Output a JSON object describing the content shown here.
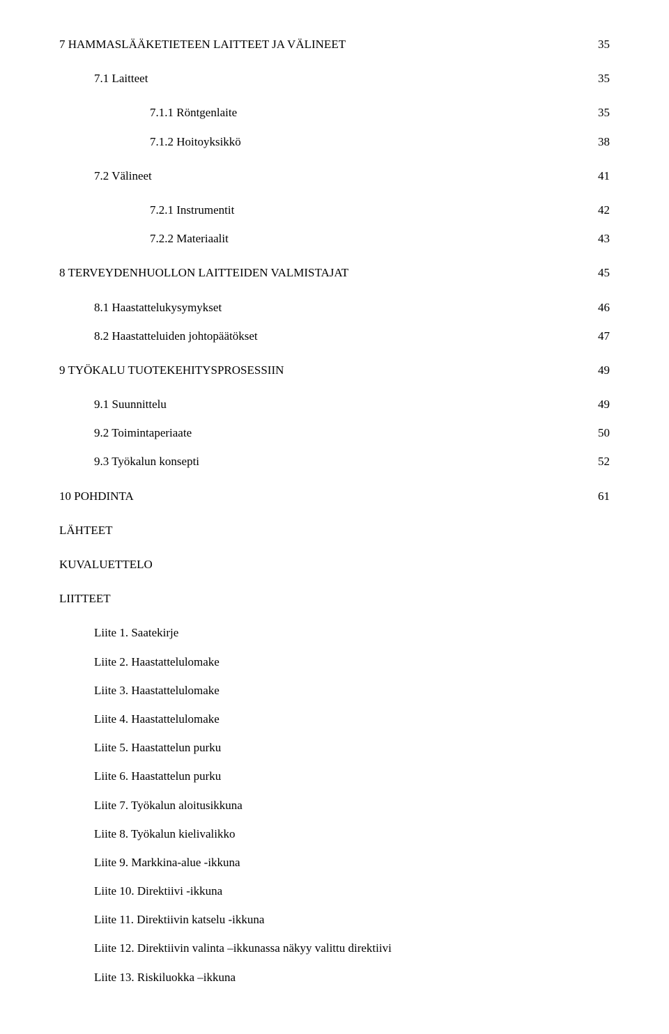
{
  "toc": [
    {
      "label": "7  HAMMASLÄÄKETIETEEN LAITTEET JA VÄLINEET",
      "page": "35",
      "indent": 0,
      "gap": false
    },
    {
      "label": "7.1  Laitteet",
      "page": "35",
      "indent": 1,
      "gap": true
    },
    {
      "label": "7.1.1  Röntgenlaite",
      "page": "35",
      "indent": 2,
      "gap": true
    },
    {
      "label": "7.1.2  Hoitoyksikkö",
      "page": "38",
      "indent": 2,
      "gap": false
    },
    {
      "label": "7.2  Välineet",
      "page": "41",
      "indent": 1,
      "gap": true
    },
    {
      "label": "7.2.1  Instrumentit",
      "page": "42",
      "indent": 2,
      "gap": true
    },
    {
      "label": "7.2.2  Materiaalit",
      "page": "43",
      "indent": 2,
      "gap": false
    },
    {
      "label": "8  TERVEYDENHUOLLON LAITTEIDEN VALMISTAJAT",
      "page": "45",
      "indent": 0,
      "gap": true
    },
    {
      "label": "8.1  Haastattelukysymykset",
      "page": "46",
      "indent": 1,
      "gap": true
    },
    {
      "label": "8.2  Haastatteluiden johtopäätökset",
      "page": "47",
      "indent": 1,
      "gap": false
    },
    {
      "label": "9  TYÖKALU TUOTEKEHITYSPROSESSIIN",
      "page": "49",
      "indent": 0,
      "gap": true
    },
    {
      "label": "9.1  Suunnittelu",
      "page": "49",
      "indent": 1,
      "gap": true
    },
    {
      "label": "9.2  Toimintaperiaate",
      "page": "50",
      "indent": 1,
      "gap": false
    },
    {
      "label": "9.3  Työkalun konsepti",
      "page": "52",
      "indent": 1,
      "gap": false
    },
    {
      "label": "10 POHDINTA",
      "page": "61",
      "indent": 0,
      "gap": true
    }
  ],
  "plain": [
    "LÄHTEET",
    "KUVALUETTELO",
    "LIITTEET"
  ],
  "liitteet": [
    "Liite 1. Saatekirje",
    "Liite 2. Haastattelulomake",
    "Liite 3. Haastattelulomake",
    "Liite 4. Haastattelulomake",
    "Liite 5. Haastattelun purku",
    "Liite 6. Haastattelun purku",
    "Liite 7. Työkalun aloitusikkuna",
    "Liite 8. Työkalun kielivalikko",
    "Liite 9. Markkina-alue -ikkuna",
    "Liite 10. Direktiivi -ikkuna",
    "Liite 11. Direktiivin katselu -ikkuna",
    "Liite 12. Direktiivin valinta –ikkunassa näkyy valittu direktiivi",
    "Liite 13. Riskiluokka –ikkuna"
  ]
}
